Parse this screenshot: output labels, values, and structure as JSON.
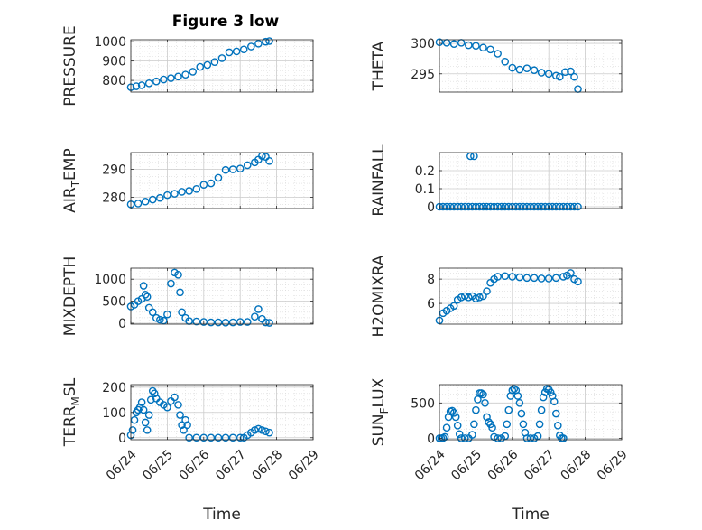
{
  "figure": {
    "title": "Figure 3 low"
  },
  "colors": {
    "marker": "#0072BD",
    "grid": "#d9d9d9",
    "axis": "#262626",
    "background": "#ffffff"
  },
  "chart_data": [
    {
      "type": "scatter",
      "id": "pressure",
      "ylabel": "PRESSURE",
      "xlabel": "",
      "title": "Figure 3 low",
      "xlim": [
        0,
        5
      ],
      "ylim": [
        740,
        1010
      ],
      "yticks": [
        800,
        900,
        1000
      ],
      "xticklabels": [
        "06/24",
        "06/25",
        "06/26",
        "06/27",
        "06/28",
        "06/29"
      ],
      "show_x_tick_labels": false,
      "grid": true,
      "points": [
        [
          0,
          765
        ],
        [
          0.15,
          770
        ],
        [
          0.3,
          775
        ],
        [
          0.5,
          785
        ],
        [
          0.7,
          795
        ],
        [
          0.9,
          805
        ],
        [
          1.1,
          812
        ],
        [
          1.3,
          820
        ],
        [
          1.5,
          830
        ],
        [
          1.7,
          845
        ],
        [
          1.9,
          870
        ],
        [
          2.1,
          880
        ],
        [
          2.3,
          895
        ],
        [
          2.5,
          915
        ],
        [
          2.7,
          945
        ],
        [
          2.9,
          950
        ],
        [
          3.1,
          960
        ],
        [
          3.3,
          975
        ],
        [
          3.5,
          990
        ],
        [
          3.7,
          1000
        ],
        [
          3.8,
          1003
        ]
      ]
    },
    {
      "type": "scatter",
      "id": "theta",
      "ylabel": "THETA",
      "xlabel": "",
      "xlim": [
        0,
        5
      ],
      "ylim": [
        292,
        300.6
      ],
      "yticks": [
        295,
        300
      ],
      "xticklabels": [
        "06/24",
        "06/25",
        "06/26",
        "06/27",
        "06/28",
        "06/29"
      ],
      "show_x_tick_labels": false,
      "grid": true,
      "points": [
        [
          0,
          300.2
        ],
        [
          0.2,
          300.1
        ],
        [
          0.4,
          299.9
        ],
        [
          0.6,
          300.1
        ],
        [
          0.8,
          299.7
        ],
        [
          1.0,
          299.6
        ],
        [
          1.2,
          299.3
        ],
        [
          1.4,
          299.0
        ],
        [
          1.6,
          298.3
        ],
        [
          1.8,
          297.0
        ],
        [
          2.0,
          296.0
        ],
        [
          2.2,
          295.7
        ],
        [
          2.4,
          295.9
        ],
        [
          2.6,
          295.6
        ],
        [
          2.8,
          295.2
        ],
        [
          3.0,
          295.0
        ],
        [
          3.2,
          294.7
        ],
        [
          3.3,
          294.5
        ],
        [
          3.45,
          295.3
        ],
        [
          3.6,
          295.4
        ],
        [
          3.7,
          294.5
        ],
        [
          3.8,
          292.5
        ]
      ]
    },
    {
      "type": "scatter",
      "id": "air_temp",
      "ylabel": "AIR_TEMP",
      "ylabel_parts": {
        "base": "AIR",
        "sub": "T",
        "rest": "EMP"
      },
      "xlabel": "",
      "xlim": [
        0,
        5
      ],
      "ylim": [
        276,
        296
      ],
      "yticks": [
        280,
        290
      ],
      "xticklabels": [
        "06/24",
        "06/25",
        "06/26",
        "06/27",
        "06/28",
        "06/29"
      ],
      "show_x_tick_labels": false,
      "grid": true,
      "points": [
        [
          0,
          277.5
        ],
        [
          0.2,
          277.8
        ],
        [
          0.4,
          278.5
        ],
        [
          0.6,
          279.2
        ],
        [
          0.8,
          279.8
        ],
        [
          1.0,
          280.8
        ],
        [
          1.2,
          281.3
        ],
        [
          1.4,
          282.0
        ],
        [
          1.6,
          282.3
        ],
        [
          1.8,
          283.0
        ],
        [
          2.0,
          284.5
        ],
        [
          2.2,
          285.0
        ],
        [
          2.4,
          287.0
        ],
        [
          2.6,
          289.8
        ],
        [
          2.8,
          290.0
        ],
        [
          3.0,
          290.3
        ],
        [
          3.2,
          291.5
        ],
        [
          3.4,
          292.5
        ],
        [
          3.5,
          293.5
        ],
        [
          3.6,
          294.8
        ],
        [
          3.7,
          294.5
        ],
        [
          3.8,
          293.0
        ]
      ]
    },
    {
      "type": "scatter",
      "id": "rainfall",
      "ylabel": "RAINFALL",
      "xlabel": "",
      "xlim": [
        0,
        5
      ],
      "ylim": [
        -0.01,
        0.3
      ],
      "yticks": [
        0,
        0.1,
        0.2
      ],
      "yticklabels": [
        "0",
        "0.1",
        "0.2"
      ],
      "xticklabels": [
        "06/24",
        "06/25",
        "06/26",
        "06/27",
        "06/28",
        "06/29"
      ],
      "show_x_tick_labels": false,
      "grid": true,
      "points": [
        [
          0,
          0
        ],
        [
          0.1,
          0
        ],
        [
          0.2,
          0
        ],
        [
          0.3,
          0
        ],
        [
          0.4,
          0
        ],
        [
          0.5,
          0
        ],
        [
          0.6,
          0
        ],
        [
          0.7,
          0
        ],
        [
          0.8,
          0
        ],
        [
          0.9,
          0
        ],
        [
          1.0,
          0
        ],
        [
          1.1,
          0
        ],
        [
          1.2,
          0
        ],
        [
          1.3,
          0
        ],
        [
          1.4,
          0
        ],
        [
          1.5,
          0
        ],
        [
          1.6,
          0
        ],
        [
          1.7,
          0
        ],
        [
          1.8,
          0
        ],
        [
          1.9,
          0
        ],
        [
          2.0,
          0
        ],
        [
          2.1,
          0
        ],
        [
          2.2,
          0
        ],
        [
          2.3,
          0
        ],
        [
          2.4,
          0
        ],
        [
          2.5,
          0
        ],
        [
          2.6,
          0
        ],
        [
          2.7,
          0
        ],
        [
          2.8,
          0
        ],
        [
          2.9,
          0
        ],
        [
          3.0,
          0
        ],
        [
          3.1,
          0
        ],
        [
          3.2,
          0
        ],
        [
          3.3,
          0
        ],
        [
          3.4,
          0
        ],
        [
          3.5,
          0
        ],
        [
          3.6,
          0
        ],
        [
          3.7,
          0
        ],
        [
          3.8,
          0
        ],
        [
          0.85,
          0.28
        ],
        [
          0.95,
          0.28
        ]
      ]
    },
    {
      "type": "scatter",
      "id": "mixdepth",
      "ylabel": "MIXDEPTH",
      "xlabel": "",
      "xlim": [
        0,
        5
      ],
      "ylim": [
        -20,
        1250
      ],
      "yticks": [
        0,
        500,
        1000
      ],
      "xticklabels": [
        "06/24",
        "06/25",
        "06/26",
        "06/27",
        "06/28",
        "06/29"
      ],
      "show_x_tick_labels": false,
      "grid": true,
      "points": [
        [
          0,
          380
        ],
        [
          0.1,
          420
        ],
        [
          0.2,
          500
        ],
        [
          0.3,
          550
        ],
        [
          0.35,
          850
        ],
        [
          0.4,
          650
        ],
        [
          0.45,
          600
        ],
        [
          0.5,
          350
        ],
        [
          0.6,
          250
        ],
        [
          0.7,
          120
        ],
        [
          0.8,
          80
        ],
        [
          0.9,
          60
        ],
        [
          1.0,
          200
        ],
        [
          1.1,
          900
        ],
        [
          1.2,
          1150
        ],
        [
          1.3,
          1100
        ],
        [
          1.35,
          700
        ],
        [
          1.4,
          250
        ],
        [
          1.5,
          120
        ],
        [
          1.6,
          50
        ],
        [
          1.8,
          40
        ],
        [
          2.0,
          30
        ],
        [
          2.2,
          20
        ],
        [
          2.4,
          20
        ],
        [
          2.6,
          15
        ],
        [
          2.8,
          20
        ],
        [
          3.0,
          30
        ],
        [
          3.2,
          30
        ],
        [
          3.4,
          150
        ],
        [
          3.5,
          320
        ],
        [
          3.6,
          100
        ],
        [
          3.7,
          20
        ],
        [
          3.8,
          10
        ]
      ]
    },
    {
      "type": "scatter",
      "id": "h2omixra",
      "ylabel": "H2OMIXRA",
      "xlabel": "",
      "xlim": [
        0,
        5
      ],
      "ylim": [
        4.3,
        8.9
      ],
      "yticks": [
        6,
        8
      ],
      "xticklabels": [
        "06/24",
        "06/25",
        "06/26",
        "06/27",
        "06/28",
        "06/29"
      ],
      "show_x_tick_labels": false,
      "grid": true,
      "points": [
        [
          0,
          4.6
        ],
        [
          0.1,
          5.2
        ],
        [
          0.2,
          5.4
        ],
        [
          0.3,
          5.6
        ],
        [
          0.4,
          5.8
        ],
        [
          0.5,
          6.3
        ],
        [
          0.6,
          6.5
        ],
        [
          0.7,
          6.6
        ],
        [
          0.8,
          6.5
        ],
        [
          0.9,
          6.6
        ],
        [
          1.0,
          6.4
        ],
        [
          1.1,
          6.5
        ],
        [
          1.2,
          6.6
        ],
        [
          1.3,
          7.0
        ],
        [
          1.4,
          7.7
        ],
        [
          1.5,
          8.0
        ],
        [
          1.6,
          8.2
        ],
        [
          1.8,
          8.25
        ],
        [
          2.0,
          8.2
        ],
        [
          2.2,
          8.15
        ],
        [
          2.4,
          8.1
        ],
        [
          2.6,
          8.1
        ],
        [
          2.8,
          8.05
        ],
        [
          3.0,
          8.05
        ],
        [
          3.2,
          8.1
        ],
        [
          3.4,
          8.2
        ],
        [
          3.5,
          8.3
        ],
        [
          3.6,
          8.5
        ],
        [
          3.7,
          8.0
        ],
        [
          3.8,
          7.8
        ]
      ]
    },
    {
      "type": "scatter",
      "id": "terr_msl",
      "ylabel": "TERR_MSL",
      "ylabel_parts": {
        "base": "TERR",
        "sub": "M",
        "rest": "SL"
      },
      "xlabel": "Time",
      "xlim": [
        0,
        5
      ],
      "ylim": [
        -8,
        210
      ],
      "yticks": [
        0,
        100,
        200
      ],
      "xticklabels": [
        "06/24",
        "06/25",
        "06/26",
        "06/27",
        "06/28",
        "06/29"
      ],
      "show_x_tick_labels": true,
      "grid": true,
      "points": [
        [
          0,
          10
        ],
        [
          0.05,
          30
        ],
        [
          0.1,
          70
        ],
        [
          0.15,
          100
        ],
        [
          0.2,
          110
        ],
        [
          0.25,
          120
        ],
        [
          0.3,
          140
        ],
        [
          0.35,
          110
        ],
        [
          0.4,
          60
        ],
        [
          0.45,
          30
        ],
        [
          0.5,
          90
        ],
        [
          0.55,
          150
        ],
        [
          0.6,
          185
        ],
        [
          0.65,
          175
        ],
        [
          0.7,
          155
        ],
        [
          0.8,
          140
        ],
        [
          0.9,
          130
        ],
        [
          1.0,
          120
        ],
        [
          1.1,
          145
        ],
        [
          1.2,
          160
        ],
        [
          1.3,
          130
        ],
        [
          1.35,
          90
        ],
        [
          1.4,
          50
        ],
        [
          1.45,
          30
        ],
        [
          1.5,
          70
        ],
        [
          1.55,
          50
        ],
        [
          1.6,
          0
        ],
        [
          1.8,
          0
        ],
        [
          2.0,
          0
        ],
        [
          2.2,
          0
        ],
        [
          2.4,
          0
        ],
        [
          2.6,
          0
        ],
        [
          2.8,
          0
        ],
        [
          3.0,
          0
        ],
        [
          3.1,
          0
        ],
        [
          3.2,
          10
        ],
        [
          3.3,
          20
        ],
        [
          3.4,
          30
        ],
        [
          3.5,
          35
        ],
        [
          3.6,
          30
        ],
        [
          3.7,
          25
        ],
        [
          3.8,
          20
        ]
      ]
    },
    {
      "type": "scatter",
      "id": "sun_flux",
      "ylabel": "SUN_FLUX",
      "ylabel_parts": {
        "base": "SUN",
        "sub": "F",
        "rest": "LUX"
      },
      "xlabel": "Time",
      "xlim": [
        0,
        5
      ],
      "ylim": [
        -20,
        760
      ],
      "yticks": [
        0,
        500
      ],
      "xticklabels": [
        "06/24",
        "06/25",
        "06/26",
        "06/27",
        "06/28",
        "06/29"
      ],
      "show_x_tick_labels": true,
      "grid": true,
      "points": [
        [
          0,
          0
        ],
        [
          0.05,
          0
        ],
        [
          0.1,
          5
        ],
        [
          0.15,
          20
        ],
        [
          0.2,
          150
        ],
        [
          0.25,
          300
        ],
        [
          0.3,
          380
        ],
        [
          0.35,
          390
        ],
        [
          0.4,
          360
        ],
        [
          0.45,
          300
        ],
        [
          0.5,
          180
        ],
        [
          0.55,
          60
        ],
        [
          0.6,
          0
        ],
        [
          0.7,
          0
        ],
        [
          0.8,
          0
        ],
        [
          0.9,
          50
        ],
        [
          0.95,
          200
        ],
        [
          1.0,
          400
        ],
        [
          1.05,
          550
        ],
        [
          1.1,
          640
        ],
        [
          1.15,
          640
        ],
        [
          1.2,
          620
        ],
        [
          1.25,
          500
        ],
        [
          1.3,
          300
        ],
        [
          1.35,
          230
        ],
        [
          1.4,
          200
        ],
        [
          1.45,
          150
        ],
        [
          1.5,
          20
        ],
        [
          1.6,
          0
        ],
        [
          1.7,
          0
        ],
        [
          1.8,
          30
        ],
        [
          1.85,
          200
        ],
        [
          1.9,
          400
        ],
        [
          1.95,
          600
        ],
        [
          2.0,
          680
        ],
        [
          2.05,
          700
        ],
        [
          2.1,
          680
        ],
        [
          2.15,
          600
        ],
        [
          2.2,
          500
        ],
        [
          2.25,
          350
        ],
        [
          2.3,
          200
        ],
        [
          2.35,
          80
        ],
        [
          2.4,
          0
        ],
        [
          2.5,
          0
        ],
        [
          2.6,
          0
        ],
        [
          2.7,
          30
        ],
        [
          2.75,
          200
        ],
        [
          2.8,
          400
        ],
        [
          2.85,
          580
        ],
        [
          2.9,
          650
        ],
        [
          2.95,
          700
        ],
        [
          3.0,
          690
        ],
        [
          3.05,
          650
        ],
        [
          3.1,
          600
        ],
        [
          3.15,
          520
        ],
        [
          3.2,
          350
        ],
        [
          3.25,
          180
        ],
        [
          3.3,
          40
        ],
        [
          3.35,
          0
        ],
        [
          3.4,
          0
        ]
      ]
    }
  ]
}
